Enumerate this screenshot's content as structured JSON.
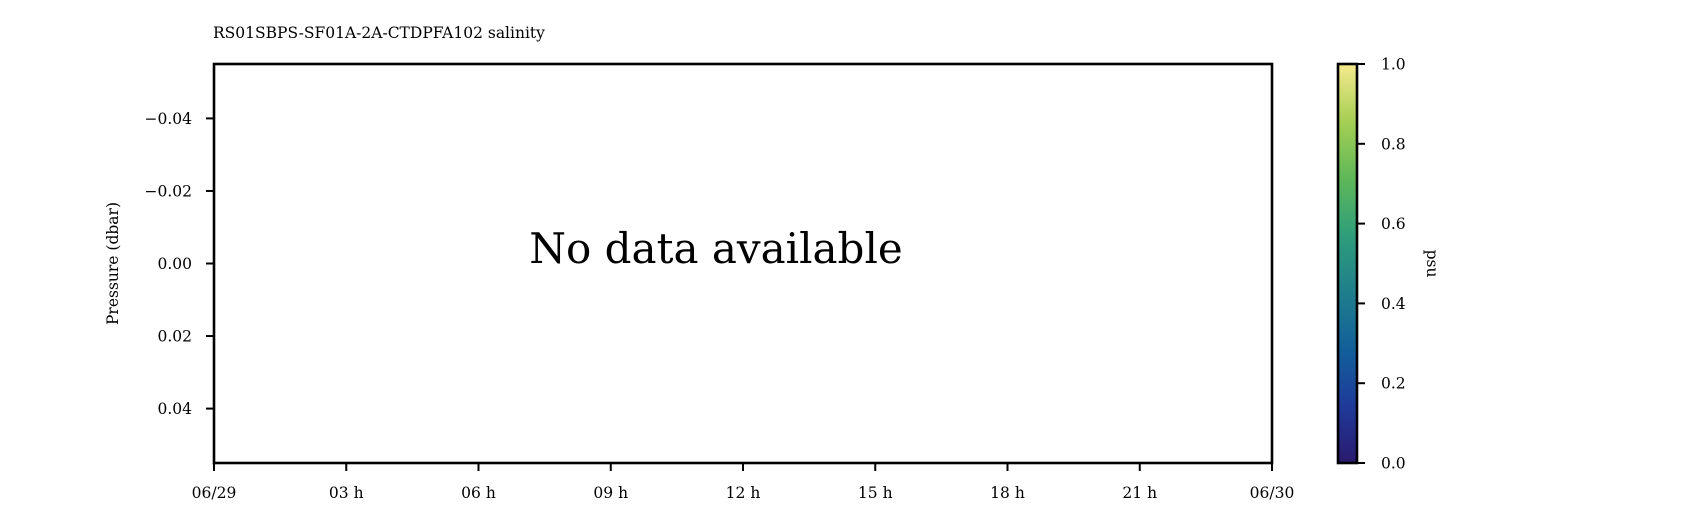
{
  "chart_data": {
    "type": "heatmap",
    "title": "RS01SBPS-SF01A-2A-CTDPFA102 salinity",
    "ylabel": "Pressure (dbar)",
    "xlabel": "",
    "ylim": [
      -0.055,
      0.055
    ],
    "y_inverted": true,
    "y_ticks": [
      {
        "value": -0.04,
        "label": "−0.04"
      },
      {
        "value": -0.02,
        "label": "−0.02"
      },
      {
        "value": 0.0,
        "label": "0.00"
      },
      {
        "value": 0.02,
        "label": "0.02"
      },
      {
        "value": 0.04,
        "label": "0.04"
      }
    ],
    "x_ticks": [
      {
        "value": 0,
        "label": "06/29"
      },
      {
        "value": 3,
        "label": "03 h"
      },
      {
        "value": 6,
        "label": "06 h"
      },
      {
        "value": 9,
        "label": "09 h"
      },
      {
        "value": 12,
        "label": "12 h"
      },
      {
        "value": 15,
        "label": "15 h"
      },
      {
        "value": 18,
        "label": "18 h"
      },
      {
        "value": 21,
        "label": "21 h"
      },
      {
        "value": 24,
        "label": "06/30"
      }
    ],
    "xlim": [
      0,
      24
    ],
    "message": "No data available",
    "grid": false,
    "colorbar": {
      "label": "psu",
      "range": [
        0.0,
        1.0
      ],
      "colormap": "haline",
      "colors": [
        "#2a1a6e",
        "#1f3a9a",
        "#12609a",
        "#1f7f8c",
        "#2f9e7a",
        "#5fb858",
        "#a6cf54",
        "#f6ea8e"
      ],
      "ticks": [
        {
          "value": 0.0,
          "label": "0.0"
        },
        {
          "value": 0.2,
          "label": "0.2"
        },
        {
          "value": 0.4,
          "label": "0.4"
        },
        {
          "value": 0.6,
          "label": "0.6"
        },
        {
          "value": 0.8,
          "label": "0.8"
        },
        {
          "value": 1.0,
          "label": "1.0"
        }
      ]
    },
    "values": []
  }
}
